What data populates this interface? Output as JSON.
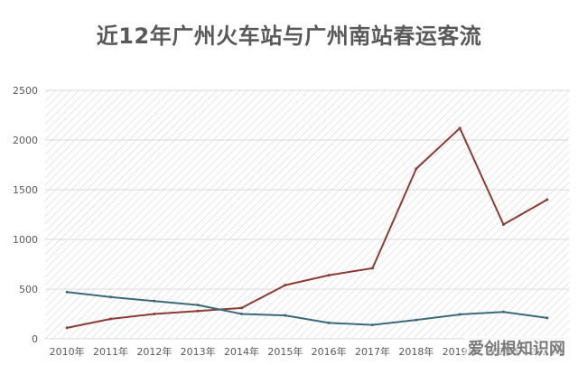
{
  "title": "近12年广州火车站与广州南站春运客流",
  "watermark": "爱创根知识网",
  "chart_data": {
    "type": "line",
    "categories": [
      "2010年",
      "2011年",
      "2012年",
      "2013年",
      "2014年",
      "2015年",
      "2016年",
      "2017年",
      "2018年",
      "2019年",
      "2020年",
      "2021年"
    ],
    "series": [
      {
        "color": "#8c3b33",
        "values": [
          110,
          200,
          250,
          280,
          310,
          540,
          640,
          710,
          1710,
          2120,
          1150,
          1400
        ]
      },
      {
        "color": "#3b6a7a",
        "values": [
          470,
          420,
          380,
          340,
          250,
          235,
          160,
          140,
          190,
          245,
          270,
          210
        ]
      }
    ],
    "ylim": [
      0,
      2500
    ],
    "yticks": [
      0,
      500,
      1000,
      1500,
      2000,
      2500
    ],
    "grid": true
  }
}
